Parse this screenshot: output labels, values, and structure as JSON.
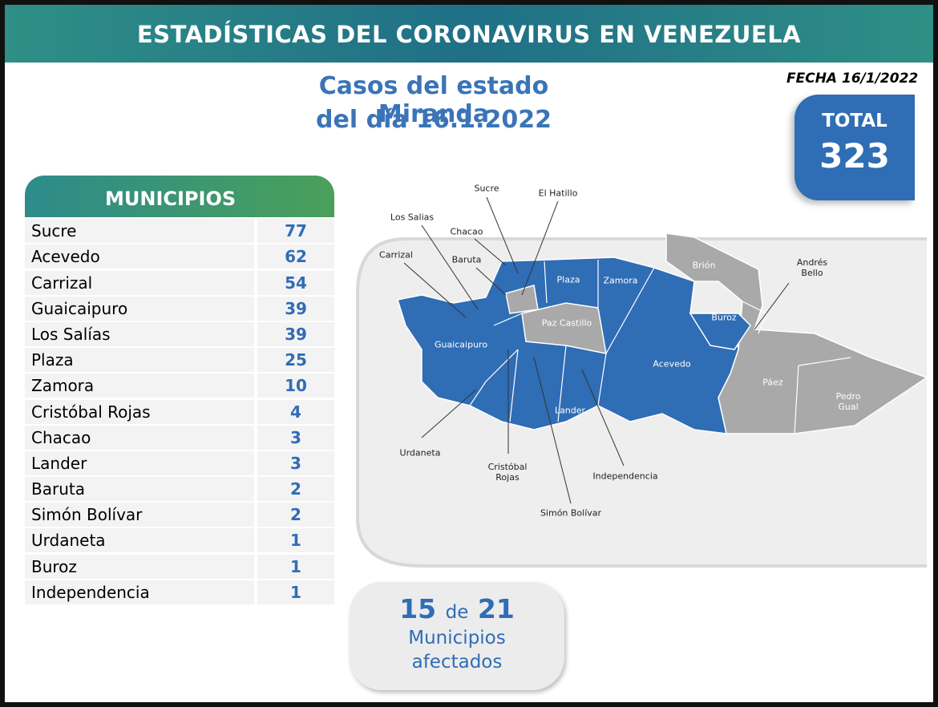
{
  "header": {
    "title": "ESTADÍSTICAS DEL CORONAVIRUS EN VENEZUELA"
  },
  "subtitle": [
    "Casos del estado Miranda",
    "del día 16.1.2022"
  ],
  "date": "FECHA 16/1/2022",
  "total": {
    "label": "TOTAL",
    "value": "323"
  },
  "table": {
    "header": "MUNICIPIOS",
    "rows": [
      [
        "Sucre",
        "77"
      ],
      [
        "Acevedo",
        "62"
      ],
      [
        "Carrizal",
        "54"
      ],
      [
        "Guaicaipuro",
        "39"
      ],
      [
        "Los Salías",
        "39"
      ],
      [
        "Plaza",
        "25"
      ],
      [
        "Zamora",
        "10"
      ],
      [
        "Cristóbal Rojas",
        "4"
      ],
      [
        "Chacao",
        "3"
      ],
      [
        "Lander",
        "3"
      ],
      [
        "Baruta",
        "2"
      ],
      [
        "Simón Bolívar",
        "2"
      ],
      [
        "Urdaneta",
        "1"
      ],
      [
        "Buroz",
        "1"
      ],
      [
        "Independencia",
        "1"
      ]
    ]
  },
  "map": {
    "labels": [
      "Sucre",
      "El Hatillo",
      "Los Salias",
      "Chacao",
      "Carrizal",
      "Baruta",
      "Plaza",
      "Zamora",
      "Brión",
      "Andrés Bello",
      "Buroz",
      "Paz Castillo",
      "Guaicaipuro",
      "Acevedo",
      "Páez",
      "Pedro Gual",
      "Lander",
      "Urdaneta",
      "Cristóbal Rojas",
      "Independencia",
      "Simón Bolívar"
    ]
  },
  "summary": {
    "affected": "15",
    "of": "de",
    "total": "21",
    "text": [
      "Municipios",
      "afectados"
    ]
  }
}
